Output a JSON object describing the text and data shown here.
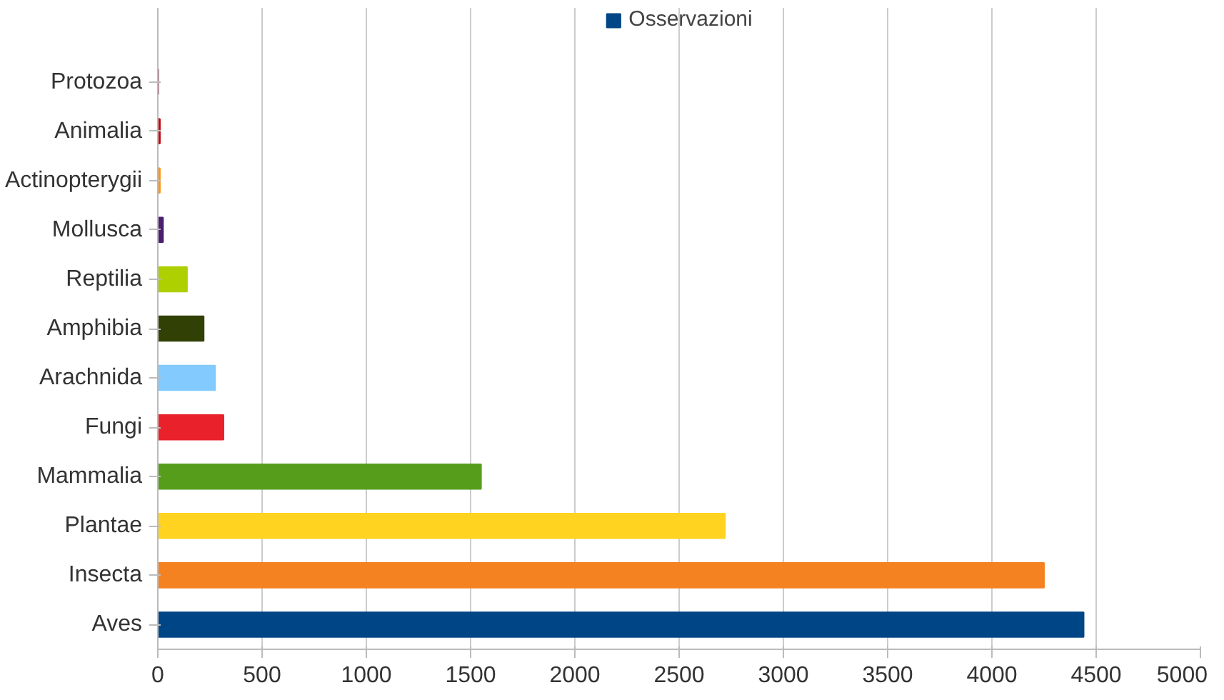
{
  "chart_data": {
    "type": "bar",
    "orientation": "horizontal",
    "categories": [
      "Protozoa",
      "Animalia",
      "Actinopterygii",
      "Mollusca",
      "Reptilia",
      "Amphibia",
      "Arachnida",
      "Fungi",
      "Mammalia",
      "Plantae",
      "Insecta",
      "Aves"
    ],
    "series": [
      {
        "name": "Osservazioni",
        "color": "#004586",
        "values": [
          2,
          10,
          10,
          25,
          140,
          220,
          275,
          315,
          1550,
          2720,
          4250,
          4440
        ],
        "colors": [
          "#7e0021",
          "#c5000b",
          "#ff950e",
          "#4b1f6f",
          "#aecf00",
          "#314004",
          "#83caff",
          "#e8212a",
          "#579d1c",
          "#ffd320",
          "#f58220",
          "#004586"
        ]
      }
    ],
    "xlim": [
      0,
      5000
    ],
    "xticks": [
      0,
      500,
      1000,
      1500,
      2000,
      2500,
      3000,
      3500,
      4000,
      4500,
      5000
    ],
    "grid": "x",
    "legend": "top"
  }
}
